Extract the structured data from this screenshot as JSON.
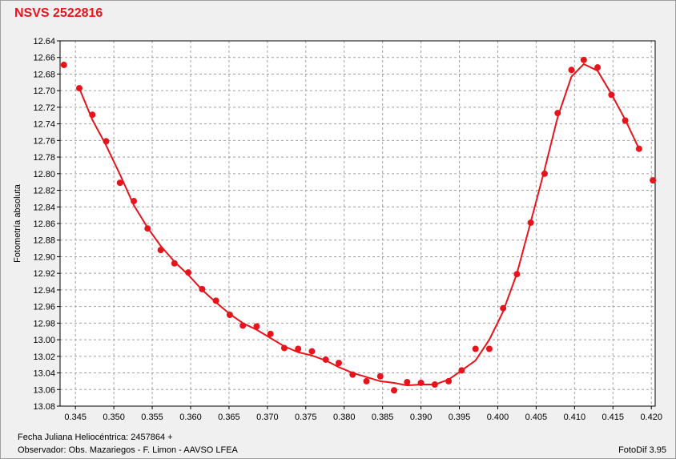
{
  "title": "NSVS 2522816",
  "footer": {
    "jd_label": "Fecha Juliana Heliocéntrica: 2457864 +",
    "observer": "Observador: Obs. Mazariegos - F. Limon - AAVSO LFEA",
    "software": "FotoDif 3.95"
  },
  "colors": {
    "series": "#e8141c",
    "grid": "#a0a0a0",
    "plot_bg": "#ffffff"
  },
  "chart_data": {
    "type": "scatter",
    "title": "NSVS 2522816",
    "xlabel": "",
    "ylabel": "Fotometría absoluta",
    "xlim": [
      0.343,
      0.4205
    ],
    "ylim": [
      13.08,
      12.64
    ],
    "y_inverted": true,
    "grid": true,
    "x_ticks": [
      "0.345",
      "0.350",
      "0.355",
      "0.360",
      "0.365",
      "0.370",
      "0.375",
      "0.380",
      "0.385",
      "0.390",
      "0.395",
      "0.400",
      "0.405",
      "0.410",
      "0.415",
      "0.420"
    ],
    "y_ticks": [
      "12.64",
      "12.66",
      "12.68",
      "12.70",
      "12.72",
      "12.74",
      "12.76",
      "12.78",
      "12.80",
      "12.82",
      "12.84",
      "12.86",
      "12.88",
      "12.90",
      "12.92",
      "12.94",
      "12.96",
      "12.98",
      "13.00",
      "13.02",
      "13.04",
      "13.06",
      "13.08"
    ],
    "series": [
      {
        "type": "scatter",
        "x": [
          0.3435,
          0.3455,
          0.3472,
          0.349,
          0.3508,
          0.3526,
          0.3544,
          0.3561,
          0.3579,
          0.3597,
          0.3615,
          0.3633,
          0.3651,
          0.3668,
          0.3686,
          0.3704,
          0.3722,
          0.374,
          0.3758,
          0.3776,
          0.3793,
          0.3811,
          0.3829,
          0.3847,
          0.3865,
          0.3882,
          0.39,
          0.3918,
          0.3936,
          0.3953,
          0.3971,
          0.3989,
          0.4007,
          0.4025,
          0.4043,
          0.4061,
          0.4078,
          0.4096,
          0.4112,
          0.413,
          0.4148,
          0.4166,
          0.4184,
          0.4202
        ],
        "y": [
          12.669,
          12.697,
          12.729,
          12.761,
          12.811,
          12.833,
          12.866,
          12.892,
          12.908,
          12.919,
          12.939,
          12.953,
          12.97,
          12.983,
          12.984,
          12.993,
          13.01,
          13.011,
          13.014,
          13.024,
          13.028,
          13.042,
          13.05,
          13.044,
          13.061,
          13.051,
          13.052,
          13.054,
          13.05,
          13.037,
          13.011,
          13.011,
          12.962,
          12.921,
          12.859,
          12.8,
          12.727,
          12.675,
          12.663,
          12.672,
          12.705,
          12.736,
          12.77,
          12.808
        ]
      },
      {
        "type": "line",
        "x": [
          0.3455,
          0.3472,
          0.349,
          0.3508,
          0.3526,
          0.3544,
          0.3561,
          0.3579,
          0.3597,
          0.3615,
          0.3633,
          0.3651,
          0.3668,
          0.3686,
          0.3704,
          0.3722,
          0.374,
          0.3758,
          0.3776,
          0.3793,
          0.3811,
          0.3829,
          0.3847,
          0.3865,
          0.3882,
          0.39,
          0.3918,
          0.3936,
          0.3953,
          0.3971,
          0.3989,
          0.4007,
          0.4025,
          0.4043,
          0.4061,
          0.4078,
          0.4096,
          0.4112,
          0.413,
          0.4148,
          0.4166,
          0.4184
        ],
        "y": [
          12.697,
          12.735,
          12.766,
          12.801,
          12.838,
          12.865,
          12.887,
          12.906,
          12.922,
          12.94,
          12.955,
          12.969,
          12.98,
          12.988,
          12.998,
          13.008,
          13.015,
          13.019,
          13.025,
          13.033,
          13.04,
          13.045,
          13.05,
          13.052,
          13.055,
          13.054,
          13.054,
          13.048,
          13.037,
          13.025,
          13.0,
          12.966,
          12.92,
          12.858,
          12.795,
          12.732,
          12.683,
          12.668,
          12.676,
          12.704,
          12.735,
          12.77
        ]
      }
    ]
  }
}
